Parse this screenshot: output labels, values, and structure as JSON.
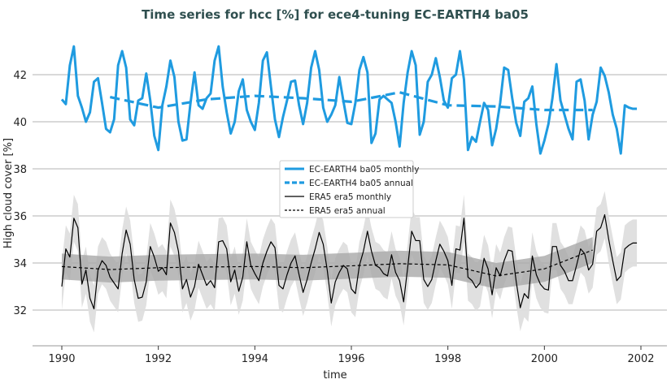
{
  "chart_data": {
    "type": "line",
    "title": "Time series for hcc [%] for ece4-tuning EC-EARTH4 ba05",
    "xlabel": "time",
    "ylabel": "High cloud cover [%]",
    "xlim": [
      1989.4,
      2002.5
    ],
    "ylim": [
      30.5,
      43.8
    ],
    "xticks": [
      "1990",
      "1992",
      "1994",
      "1996",
      "1998",
      "2000",
      "2002"
    ],
    "yticks": [
      "32",
      "34",
      "36",
      "38",
      "40",
      "42"
    ],
    "grid": "horizontal",
    "legend_position": "center",
    "colors": {
      "model": "#1f9be0",
      "obs": "#000000",
      "band_light": "#dedede",
      "band_dark": "#a9a9a9"
    },
    "series": [
      {
        "name": "EC-EARTH4 ba05 monthly",
        "start": 1990,
        "step": "month",
        "style": "solid",
        "values": [
          40.95,
          40.75,
          42.4,
          43.2,
          41.1,
          40.6,
          40.0,
          40.4,
          41.7,
          41.85,
          40.8,
          39.7,
          39.55,
          40.1,
          42.4,
          43.0,
          42.3,
          40.1,
          39.85,
          40.9,
          41.0,
          42.05,
          40.9,
          39.4,
          38.8,
          40.7,
          41.5,
          42.6,
          41.9,
          40.0,
          39.2,
          39.25,
          40.8,
          42.1,
          40.7,
          40.55,
          41.0,
          41.2,
          42.6,
          43.2,
          41.5,
          40.4,
          39.5,
          40.0,
          41.3,
          41.8,
          40.5,
          40.0,
          39.65,
          40.8,
          42.6,
          42.95,
          41.5,
          40.1,
          39.35,
          40.2,
          40.9,
          41.7,
          41.75,
          40.7,
          39.9,
          40.8,
          42.3,
          43.0,
          42.2,
          40.6,
          40.0,
          40.3,
          40.7,
          41.9,
          40.9,
          39.95,
          39.9,
          40.8,
          42.2,
          42.75,
          42.1,
          39.1,
          39.5,
          40.95,
          41.1,
          40.95,
          40.8,
          40.0,
          38.95,
          40.8,
          42.1,
          43.0,
          42.4,
          39.45,
          40.0,
          41.7,
          42.0,
          42.7,
          41.9,
          40.9,
          40.6,
          41.85,
          42.0,
          43.0,
          41.8,
          38.8,
          39.35,
          39.15,
          40.0,
          40.8,
          40.5,
          39.0,
          39.7,
          40.8,
          42.3,
          42.2,
          41.0,
          39.95,
          39.4,
          40.85,
          41.0,
          41.5,
          39.9,
          38.65,
          39.2,
          39.9,
          41.0,
          42.45,
          40.9,
          40.3,
          39.7,
          39.25,
          41.7,
          41.8,
          40.9,
          39.25,
          40.3,
          40.85,
          42.3,
          41.95,
          41.25,
          40.3,
          39.7,
          38.65,
          40.7,
          40.6,
          40.55,
          40.55
        ]
      },
      {
        "name": "EC-EARTH4 ba05 annual",
        "x": [
          1991,
          1992,
          1993,
          1994,
          1995,
          1996,
          1997,
          1998,
          1999,
          2000,
          2001
        ],
        "style": "dashed",
        "values": [
          41.05,
          40.6,
          40.95,
          41.1,
          41.0,
          40.85,
          41.25,
          40.7,
          40.65,
          40.5,
          40.5
        ]
      },
      {
        "name": "ERA5 era5 monthly",
        "start": 1990,
        "step": "month",
        "style": "solid",
        "spread": 1.0,
        "values": [
          33.0,
          34.6,
          34.25,
          35.9,
          35.5,
          33.1,
          33.7,
          32.5,
          32.05,
          33.7,
          34.1,
          33.9,
          33.4,
          33.15,
          32.9,
          34.4,
          35.4,
          34.8,
          33.3,
          32.5,
          32.55,
          33.2,
          34.7,
          34.25,
          33.65,
          33.8,
          33.5,
          35.7,
          35.3,
          34.5,
          32.9,
          33.3,
          32.55,
          33.0,
          33.95,
          33.5,
          33.05,
          33.25,
          32.95,
          34.9,
          34.95,
          34.6,
          33.2,
          33.7,
          32.8,
          33.4,
          34.9,
          33.9,
          33.55,
          33.25,
          34.0,
          34.5,
          34.9,
          34.65,
          33.05,
          32.9,
          33.5,
          34.0,
          34.3,
          33.5,
          32.75,
          33.3,
          34.0,
          34.6,
          35.3,
          34.8,
          33.7,
          32.3,
          33.2,
          33.6,
          33.9,
          33.75,
          32.9,
          32.7,
          33.9,
          34.5,
          35.35,
          34.5,
          33.9,
          33.8,
          33.55,
          33.45,
          34.35,
          33.6,
          33.25,
          32.35,
          33.8,
          35.35,
          34.95,
          34.95,
          33.3,
          33.0,
          33.3,
          34.1,
          34.8,
          34.5,
          34.1,
          33.05,
          34.6,
          34.55,
          35.9,
          33.4,
          33.25,
          32.95,
          33.15,
          34.2,
          33.75,
          32.65,
          33.8,
          33.45,
          34.1,
          34.55,
          34.5,
          33.2,
          32.1,
          32.7,
          32.5,
          34.3,
          33.5,
          33.1,
          32.9,
          32.85,
          34.7,
          34.7,
          33.9,
          33.65,
          33.25,
          33.25,
          33.9,
          34.6,
          34.4,
          33.7,
          33.95,
          35.35,
          35.5,
          36.05,
          35.0,
          34.1,
          33.25,
          33.45,
          34.6,
          34.75,
          34.85,
          34.85
        ]
      },
      {
        "name": "ERA5 era5 annual",
        "x": [
          1990,
          1991,
          1992,
          1993,
          1994,
          1995,
          1996,
          1997,
          1998,
          1999,
          2000,
          2001
        ],
        "style": "dashed",
        "spread": 0.55,
        "values": [
          33.85,
          33.72,
          33.8,
          33.83,
          33.85,
          33.8,
          33.88,
          33.97,
          33.92,
          33.45,
          33.75,
          34.55
        ]
      }
    ]
  }
}
